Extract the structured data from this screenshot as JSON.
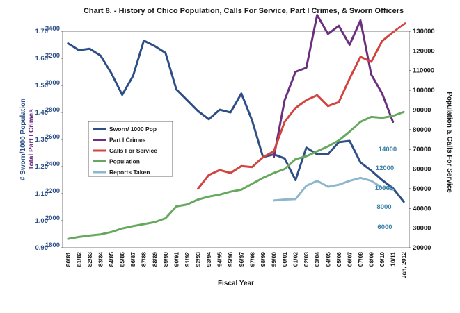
{
  "chart_data": {
    "type": "line",
    "title": "Chart 8. - History of Chico Population, Calls For Service, Part I Crimes, & Sworn Officers",
    "xlabel": "Fiscal Year",
    "ylabel_left": [
      "# Sworn/1000 Population",
      "Total Part I Crimes"
    ],
    "ylabel_right": "Population & Calls For Service",
    "categories": [
      "80/81",
      "81/82",
      "82/83",
      "83/84",
      "84/85",
      "85/86",
      "86/87",
      "87/88",
      "88/89",
      "89/90",
      "90/91",
      "91/92",
      "92/93",
      "93/94",
      "94/95",
      "95/96",
      "96/97",
      "97/98",
      "98/99",
      "99/00",
      "00/01",
      "01/02",
      "02/03",
      "03/04",
      "04/05",
      "05/06",
      "06/07",
      "07/08",
      "08/09",
      "09/10",
      "10/11",
      "Jan, 2012"
    ],
    "left_axis_sworn": {
      "ticks": [
        "0.90",
        "1.00",
        "1.10",
        "1.20",
        "1.30",
        "1.40",
        "1.50",
        "1.60",
        "1.70"
      ],
      "range": [
        0.9,
        1.7
      ]
    },
    "left_axis_crimes": {
      "ticks": [
        "1800",
        "2000",
        "2200",
        "2400",
        "2600",
        "2800",
        "3000",
        "3200",
        "3400"
      ],
      "range": [
        1800,
        3400
      ]
    },
    "right_axis": {
      "ticks": [
        "20000",
        "30000",
        "40000",
        "50000",
        "60000",
        "70000",
        "80000",
        "90000",
        "100000",
        "110000",
        "120000",
        "130000"
      ],
      "range": [
        20000,
        130000
      ]
    },
    "series": [
      {
        "name": "Sworn/ 1000 Pop",
        "color": "#2e4f85",
        "axis": "sworn",
        "values": [
          1.655,
          1.63,
          1.635,
          1.61,
          1.545,
          1.465,
          1.535,
          1.665,
          1.645,
          1.62,
          1.485,
          1.445,
          1.405,
          1.375,
          1.41,
          1.4,
          1.47,
          1.37,
          1.235,
          1.245,
          1.23,
          1.15,
          1.27,
          1.245,
          1.245,
          1.29,
          1.295,
          1.215,
          1.185,
          1.15,
          1.12,
          1.07
        ]
      },
      {
        "name": "Part I Crimes",
        "color": "#6b2f7e",
        "axis": "crimes",
        "values": [
          null,
          null,
          null,
          null,
          null,
          null,
          null,
          null,
          null,
          null,
          null,
          null,
          null,
          null,
          null,
          null,
          null,
          null,
          null,
          2470,
          2890,
          3100,
          3130,
          3520,
          3380,
          3440,
          3300,
          3480,
          3080,
          2940,
          2730,
          null
        ]
      },
      {
        "name": "Calls For Service",
        "color": "#d2443f",
        "axis": "right",
        "values": [
          null,
          null,
          null,
          null,
          null,
          null,
          null,
          null,
          null,
          null,
          null,
          null,
          50000,
          57000,
          59500,
          58000,
          61500,
          61000,
          66000,
          69000,
          84000,
          91000,
          95000,
          97500,
          92000,
          94000,
          106000,
          117000,
          114500,
          125000,
          129500,
          null
        ],
        "dotted_extension": [
          129500,
          134000
        ]
      },
      {
        "name": "Population",
        "color": "#66a85e",
        "axis": "right",
        "values": [
          24500,
          25500,
          26200,
          26800,
          28000,
          29800,
          31000,
          32000,
          33000,
          35000,
          41000,
          42000,
          44500,
          46000,
          47000,
          48500,
          49500,
          52500,
          55500,
          58000,
          60000,
          65000,
          66500,
          69000,
          71500,
          74500,
          79000,
          84000,
          86500,
          86000,
          87000,
          89000
        ]
      },
      {
        "name": "Reports Taken",
        "color": "#8eb6cc",
        "axis": "right",
        "values": [
          null,
          null,
          null,
          null,
          null,
          null,
          null,
          null,
          null,
          null,
          null,
          null,
          null,
          null,
          null,
          null,
          null,
          null,
          null,
          44000,
          44500,
          44700,
          51500,
          54000,
          51000,
          52000,
          54000,
          55500,
          54000,
          50500,
          49500,
          null
        ]
      }
    ],
    "annotations": [
      "14000",
      "12000",
      "10000",
      "8000",
      "6000"
    ],
    "legend_position": "left-center"
  }
}
